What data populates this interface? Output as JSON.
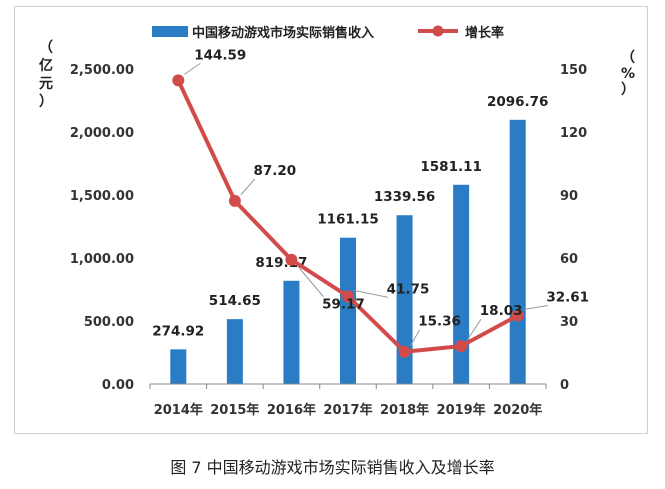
{
  "caption": "图 7  中国移动游戏市场实际销售收入及增长率",
  "colors": {
    "bar": "#2a7dc4",
    "line": "#d24b4b",
    "axis": "#888888",
    "leader": "#999999"
  },
  "chart_data": {
    "type": "bar",
    "categories": [
      "2014年",
      "2015年",
      "2016年",
      "2017年",
      "2018年",
      "2019年",
      "2020年"
    ],
    "series": [
      {
        "name": "中国移动游戏市场实际销售收入",
        "type": "bar",
        "axis": "left",
        "values": [
          274.92,
          514.65,
          819.17,
          1161.15,
          1339.56,
          1581.11,
          2096.76
        ],
        "labels": [
          "274.92",
          "514.65",
          "819.17",
          "1161.15",
          "1339.56",
          "1581.11",
          "2096.76"
        ]
      },
      {
        "name": "增长率",
        "type": "line",
        "axis": "right",
        "values": [
          144.59,
          87.2,
          59.17,
          41.75,
          15.36,
          18.03,
          32.61
        ],
        "labels": [
          "144.59",
          "87.20",
          "59.17",
          "41.75",
          "15.36",
          "18.03",
          "32.61"
        ]
      }
    ],
    "y_left": {
      "ylim": [
        0,
        2500
      ],
      "ticks": [
        "0.00",
        "500.00",
        "1,000.00",
        "1,500.00",
        "2,000.00",
        "2,500.00"
      ],
      "unit": [
        "（",
        "亿",
        "元",
        "）"
      ]
    },
    "y_right": {
      "ylim": [
        0,
        150
      ],
      "ticks": [
        "0",
        "30",
        "60",
        "90",
        "120",
        "150"
      ],
      "unit": [
        "（",
        "%",
        "）"
      ]
    },
    "legend": {
      "position": "top"
    },
    "grid": false
  }
}
